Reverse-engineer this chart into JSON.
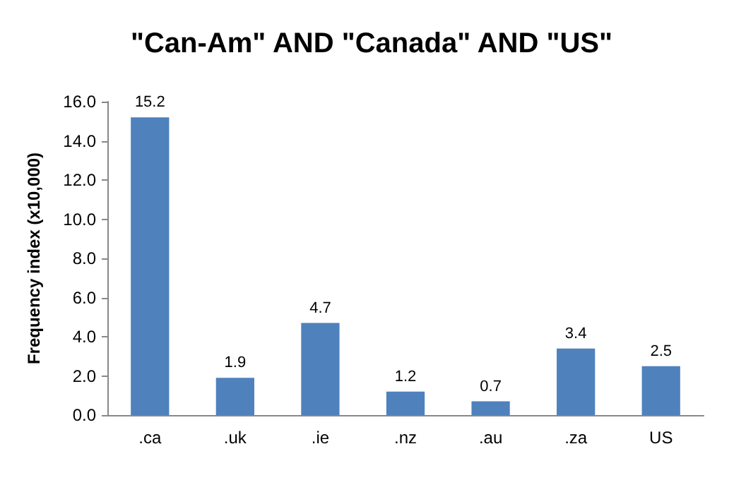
{
  "chart_data": {
    "type": "bar",
    "title": "\"Can-Am\" AND \"Canada\" AND \"US\"",
    "ylabel": "Frequency index (x10,000)",
    "categories": [
      ".ca",
      ".uk",
      ".ie",
      ".nz",
      ".au",
      ".za",
      "US"
    ],
    "values": [
      15.2,
      1.9,
      4.7,
      1.2,
      0.7,
      3.4,
      2.5
    ],
    "color": "#4f81bd",
    "ylim": [
      0,
      16
    ],
    "yticks": [
      {
        "value": 0,
        "label": "0.0"
      },
      {
        "value": 2,
        "label": "2.0"
      },
      {
        "value": 4,
        "label": "4.0"
      },
      {
        "value": 6,
        "label": "6.0"
      },
      {
        "value": 8,
        "label": "8.0"
      },
      {
        "value": 10,
        "label": "10.0"
      },
      {
        "value": 12,
        "label": "12.0"
      },
      {
        "value": 14,
        "label": "14.0"
      },
      {
        "value": 16,
        "label": "16.0"
      }
    ],
    "grid": false,
    "data_labels": true
  }
}
